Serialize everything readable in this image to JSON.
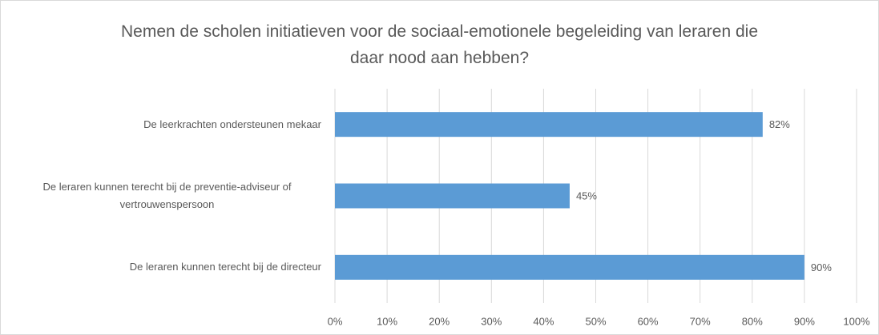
{
  "chart_data": {
    "type": "bar",
    "orientation": "horizontal",
    "title": "Nemen de scholen initiatieven voor de sociaal-emotionele begeleiding van leraren die daar nood aan hebben?",
    "categories": [
      "De leerkrachten ondersteunen mekaar",
      "De leraren kunnen terecht bij de preventie-adviseur of vertrouwenspersoon",
      "De leraren kunnen terecht bij de directeur"
    ],
    "values": [
      82,
      45,
      90
    ],
    "value_labels": [
      "82%",
      "45%",
      "90%"
    ],
    "color": "#5b9bd5",
    "xlim": [
      0,
      100
    ],
    "xticks": [
      {
        "value": 0,
        "label": "0%"
      },
      {
        "value": 10,
        "label": "10%"
      },
      {
        "value": 20,
        "label": "20%"
      },
      {
        "value": 30,
        "label": "30%"
      },
      {
        "value": 40,
        "label": "40%"
      },
      {
        "value": 50,
        "label": "50%"
      },
      {
        "value": 60,
        "label": "60%"
      },
      {
        "value": 70,
        "label": "70%"
      },
      {
        "value": 80,
        "label": "80%"
      },
      {
        "value": 90,
        "label": "90%"
      },
      {
        "value": 100,
        "label": "100%"
      }
    ],
    "grid": true
  }
}
